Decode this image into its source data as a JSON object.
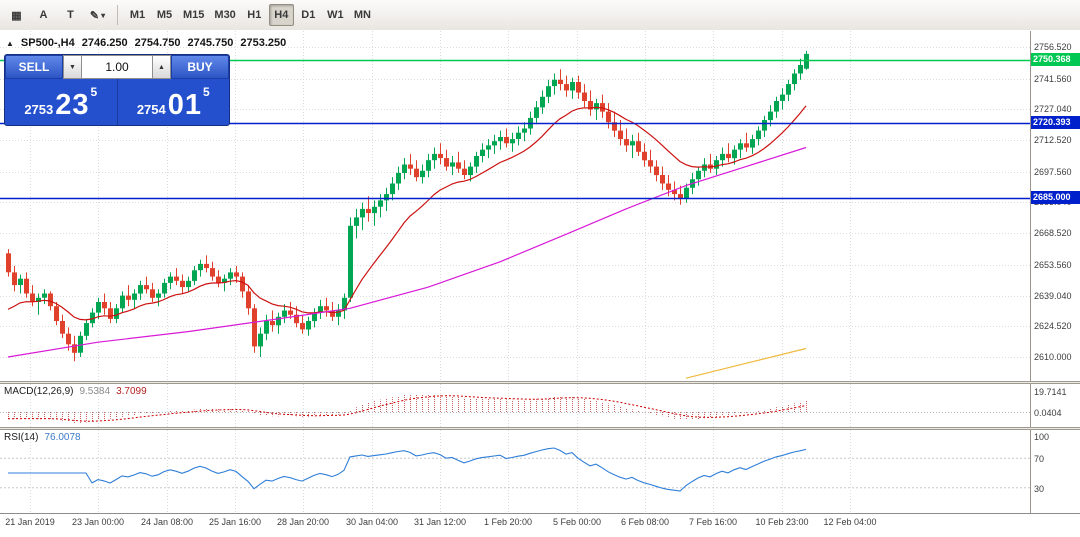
{
  "toolbar": {
    "tools": [
      {
        "name": "charts-grid-icon",
        "glyph": "▦"
      },
      {
        "name": "text-label-tool-icon",
        "glyph": "A"
      },
      {
        "name": "text-tool-icon",
        "glyph": "T"
      },
      {
        "name": "draw-tools-icon",
        "glyph": "✎",
        "chevron": "▾"
      }
    ],
    "timeframes": [
      "M1",
      "M5",
      "M15",
      "M30",
      "H1",
      "H4",
      "D1",
      "W1",
      "MN"
    ],
    "active_timeframe": "H4"
  },
  "chart_header": {
    "collapse_icon": "▲",
    "symbol": "SP500-,H4",
    "open": "2746.250",
    "high": "2754.750",
    "low": "2745.750",
    "close": "2753.250"
  },
  "trade_panel": {
    "sell_label": "SELL",
    "buy_label": "BUY",
    "volume": "1.00",
    "volume_down_icon": "▼",
    "volume_up_icon": "▲",
    "bid": {
      "prefix": "2753",
      "pips": "23",
      "pipette": "5"
    },
    "ask": {
      "prefix": "2754",
      "pips": "01",
      "pipette": "5"
    }
  },
  "macd": {
    "name": "MACD(12,26,9)",
    "value": "9.5384",
    "signal": "3.7099",
    "axis": [
      "19.7141",
      "0.0404"
    ]
  },
  "rsi": {
    "name": "RSI(14)",
    "value": "76.0078",
    "axis": [
      "100",
      "70",
      "30"
    ]
  },
  "chart_data": {
    "type": "candlestick",
    "symbol": "SP500-",
    "timeframe": "H4",
    "price_top": 2756.52,
    "price_bottom": 2610.0,
    "price_axis": [
      "2756.520",
      "2741.560",
      "2727.040",
      "2712.520",
      "2697.560",
      "2683.040",
      "2668.520",
      "2653.560",
      "2639.040",
      "2624.520",
      "2610.000"
    ],
    "time_labels": [
      "21 Jan 2019",
      "23 Jan 00:00",
      "24 Jan 08:00",
      "25 Jan 16:00",
      "28 Jan 20:00",
      "30 Jan 04:00",
      "31 Jan 12:00",
      "1 Feb 20:00",
      "5 Feb 00:00",
      "6 Feb 08:00",
      "7 Feb 16:00",
      "10 Feb 23:00",
      "12 Feb 04:00"
    ],
    "colors": {
      "up": "#00a651",
      "down": "#e0412c"
    },
    "levels": [
      {
        "value": 2750.368,
        "label": "2750.368",
        "color": "#00c853"
      },
      {
        "value": 2720.393,
        "label": "2720.393",
        "color": "#0020cc"
      },
      {
        "value": 2685.0,
        "label": "2685.000",
        "color": "#0020cc"
      }
    ],
    "indicators": {
      "ma_fast": {
        "period": 15,
        "seed": 2630,
        "color": "#cc1111"
      },
      "ma_slow": {
        "color": "#d819d8",
        "points": [
          [
            0,
            2610
          ],
          [
            15,
            2617
          ],
          [
            30,
            2622
          ],
          [
            45,
            2628
          ],
          [
            57,
            2633
          ],
          [
            70,
            2643
          ],
          [
            82,
            2655
          ],
          [
            93,
            2668
          ],
          [
            103,
            2680
          ],
          [
            113,
            2691
          ],
          [
            123,
            2700
          ],
          [
            133,
            2709
          ]
        ]
      },
      "ma_long": {
        "color": "#efb93f",
        "points": [
          [
            113,
            2600
          ],
          [
            123,
            2607
          ],
          [
            133,
            2614
          ]
        ]
      },
      "macd": {
        "fast": 12,
        "slow": 26,
        "signal": 9,
        "seed_fast": 2648,
        "seed_slow": 2655,
        "hist_color": "#c96060",
        "signal_color": "#cc0000"
      },
      "rsi": {
        "period": 14,
        "color": "#2f7ed8"
      }
    },
    "candles": [
      [
        2659,
        2661,
        2648,
        2650
      ],
      [
        2650,
        2653,
        2641,
        2644
      ],
      [
        2644,
        2649,
        2640,
        2647
      ],
      [
        2647,
        2650,
        2638,
        2640
      ],
      [
        2640,
        2644,
        2634,
        2636
      ],
      [
        2636,
        2640,
        2630,
        2638
      ],
      [
        2638,
        2642,
        2635,
        2640
      ],
      [
        2640,
        2641,
        2632,
        2634
      ],
      [
        2634,
        2636,
        2625,
        2627
      ],
      [
        2627,
        2630,
        2619,
        2621
      ],
      [
        2621,
        2624,
        2613,
        2616
      ],
      [
        2616,
        2620,
        2608,
        2612
      ],
      [
        2612,
        2622,
        2610,
        2620
      ],
      [
        2620,
        2628,
        2618,
        2626
      ],
      [
        2626,
        2633,
        2624,
        2631
      ],
      [
        2631,
        2638,
        2628,
        2636
      ],
      [
        2636,
        2640,
        2630,
        2633
      ],
      [
        2633,
        2636,
        2626,
        2628
      ],
      [
        2628,
        2635,
        2626,
        2633
      ],
      [
        2633,
        2641,
        2631,
        2639
      ],
      [
        2639,
        2644,
        2634,
        2637
      ],
      [
        2637,
        2642,
        2633,
        2640
      ],
      [
        2640,
        2646,
        2637,
        2644
      ],
      [
        2644,
        2648,
        2640,
        2642
      ],
      [
        2642,
        2645,
        2636,
        2638
      ],
      [
        2638,
        2642,
        2634,
        2640
      ],
      [
        2640,
        2647,
        2638,
        2645
      ],
      [
        2645,
        2650,
        2642,
        2648
      ],
      [
        2648,
        2652,
        2644,
        2646
      ],
      [
        2646,
        2649,
        2640,
        2643
      ],
      [
        2643,
        2648,
        2641,
        2646
      ],
      [
        2646,
        2653,
        2644,
        2651
      ],
      [
        2651,
        2656,
        2648,
        2654
      ],
      [
        2654,
        2658,
        2650,
        2652
      ],
      [
        2652,
        2655,
        2646,
        2648
      ],
      [
        2648,
        2651,
        2643,
        2645
      ],
      [
        2645,
        2649,
        2641,
        2647
      ],
      [
        2647,
        2652,
        2644,
        2650
      ],
      [
        2650,
        2653,
        2645,
        2648
      ],
      [
        2648,
        2650,
        2638,
        2641
      ],
      [
        2641,
        2644,
        2630,
        2633
      ],
      [
        2633,
        2635,
        2612,
        2615
      ],
      [
        2615,
        2624,
        2610,
        2621
      ],
      [
        2621,
        2630,
        2618,
        2627
      ],
      [
        2627,
        2632,
        2622,
        2625
      ],
      [
        2625,
        2631,
        2621,
        2629
      ],
      [
        2629,
        2635,
        2626,
        2632
      ],
      [
        2632,
        2636,
        2628,
        2630
      ],
      [
        2630,
        2634,
        2624,
        2626
      ],
      [
        2626,
        2630,
        2621,
        2623
      ],
      [
        2623,
        2629,
        2620,
        2627
      ],
      [
        2627,
        2633,
        2624,
        2631
      ],
      [
        2631,
        2637,
        2628,
        2634
      ],
      [
        2634,
        2638,
        2629,
        2632
      ],
      [
        2632,
        2636,
        2627,
        2629
      ],
      [
        2629,
        2635,
        2625,
        2632
      ],
      [
        2632,
        2640,
        2628,
        2638
      ],
      [
        2638,
        2676,
        2636,
        2672
      ],
      [
        2672,
        2680,
        2666,
        2676
      ],
      [
        2676,
        2683,
        2670,
        2680
      ],
      [
        2680,
        2686,
        2674,
        2678
      ],
      [
        2678,
        2684,
        2672,
        2681
      ],
      [
        2681,
        2687,
        2676,
        2684
      ],
      [
        2684,
        2690,
        2679,
        2687
      ],
      [
        2687,
        2695,
        2684,
        2692
      ],
      [
        2692,
        2700,
        2689,
        2697
      ],
      [
        2697,
        2704,
        2694,
        2701
      ],
      [
        2701,
        2706,
        2696,
        2699
      ],
      [
        2699,
        2703,
        2693,
        2695
      ],
      [
        2695,
        2701,
        2692,
        2698
      ],
      [
        2698,
        2706,
        2695,
        2703
      ],
      [
        2703,
        2709,
        2699,
        2706
      ],
      [
        2706,
        2711,
        2701,
        2704
      ],
      [
        2704,
        2708,
        2698,
        2700
      ],
      [
        2700,
        2705,
        2696,
        2702
      ],
      [
        2702,
        2707,
        2697,
        2699
      ],
      [
        2699,
        2703,
        2694,
        2696
      ],
      [
        2696,
        2702,
        2693,
        2700
      ],
      [
        2700,
        2707,
        2697,
        2705
      ],
      [
        2705,
        2711,
        2702,
        2708
      ],
      [
        2708,
        2713,
        2704,
        2710
      ],
      [
        2710,
        2715,
        2706,
        2712
      ],
      [
        2712,
        2717,
        2708,
        2714
      ],
      [
        2714,
        2718,
        2709,
        2711
      ],
      [
        2711,
        2716,
        2707,
        2713
      ],
      [
        2713,
        2719,
        2710,
        2716
      ],
      [
        2716,
        2721,
        2712,
        2718
      ],
      [
        2718,
        2726,
        2715,
        2723
      ],
      [
        2723,
        2731,
        2720,
        2728
      ],
      [
        2728,
        2736,
        2725,
        2733
      ],
      [
        2733,
        2741,
        2730,
        2738
      ],
      [
        2738,
        2744,
        2734,
        2741
      ],
      [
        2741,
        2746,
        2736,
        2739
      ],
      [
        2739,
        2743,
        2733,
        2736
      ],
      [
        2736,
        2742,
        2732,
        2740
      ],
      [
        2740,
        2743,
        2732,
        2735
      ],
      [
        2735,
        2739,
        2728,
        2731
      ],
      [
        2731,
        2736,
        2724,
        2727
      ],
      [
        2727,
        2732,
        2722,
        2730
      ],
      [
        2730,
        2734,
        2723,
        2726
      ],
      [
        2726,
        2730,
        2718,
        2721
      ],
      [
        2721,
        2726,
        2714,
        2717
      ],
      [
        2717,
        2722,
        2710,
        2713
      ],
      [
        2713,
        2718,
        2707,
        2710
      ],
      [
        2710,
        2715,
        2704,
        2712
      ],
      [
        2712,
        2716,
        2705,
        2707
      ],
      [
        2707,
        2711,
        2700,
        2703
      ],
      [
        2703,
        2708,
        2697,
        2700
      ],
      [
        2700,
        2703,
        2693,
        2696
      ],
      [
        2696,
        2700,
        2689,
        2692
      ],
      [
        2692,
        2696,
        2686,
        2689
      ],
      [
        2689,
        2693,
        2684,
        2687
      ],
      [
        2687,
        2691,
        2682,
        2685
      ],
      [
        2685,
        2692,
        2683,
        2690
      ],
      [
        2690,
        2697,
        2687,
        2694
      ],
      [
        2694,
        2700,
        2691,
        2698
      ],
      [
        2698,
        2704,
        2695,
        2701
      ],
      [
        2701,
        2706,
        2697,
        2699
      ],
      [
        2699,
        2705,
        2696,
        2703
      ],
      [
        2703,
        2709,
        2700,
        2706
      ],
      [
        2706,
        2711,
        2702,
        2704
      ],
      [
        2704,
        2710,
        2701,
        2708
      ],
      [
        2708,
        2713,
        2704,
        2711
      ],
      [
        2711,
        2716,
        2707,
        2709
      ],
      [
        2709,
        2715,
        2706,
        2713
      ],
      [
        2713,
        2719,
        2710,
        2717
      ],
      [
        2717,
        2724,
        2714,
        2722
      ],
      [
        2722,
        2729,
        2719,
        2726
      ],
      [
        2726,
        2733,
        2723,
        2731
      ],
      [
        2731,
        2737,
        2727,
        2734
      ],
      [
        2734,
        2741,
        2731,
        2739
      ],
      [
        2739,
        2746,
        2736,
        2744
      ],
      [
        2744,
        2751,
        2741,
        2748
      ],
      [
        2746.25,
        2754.75,
        2745.75,
        2753.25
      ]
    ]
  }
}
